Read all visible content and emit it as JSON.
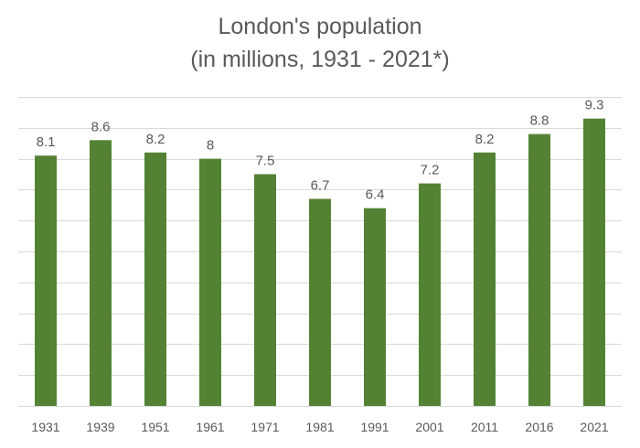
{
  "chart_data": {
    "type": "bar",
    "title": "London's population",
    "subtitle": "(in millions, 1931 - 2021*)",
    "categories": [
      "1931",
      "1939",
      "1951",
      "1961",
      "1971",
      "1981",
      "1991",
      "2001",
      "2011",
      "2016",
      "2021"
    ],
    "values": [
      8.1,
      8.6,
      8.2,
      8,
      7.5,
      6.7,
      6.4,
      7.2,
      8.2,
      8.8,
      9.3
    ],
    "data_labels": [
      "8.1",
      "8.6",
      "8.2",
      "8",
      "7.5",
      "6.7",
      "6.4",
      "7.2",
      "8.2",
      "8.8",
      "9.3"
    ],
    "ylim": [
      0,
      10
    ],
    "grid": true,
    "colors": {
      "bar": "#548235",
      "grid": "#d9d9d9",
      "text": "#595959"
    }
  }
}
